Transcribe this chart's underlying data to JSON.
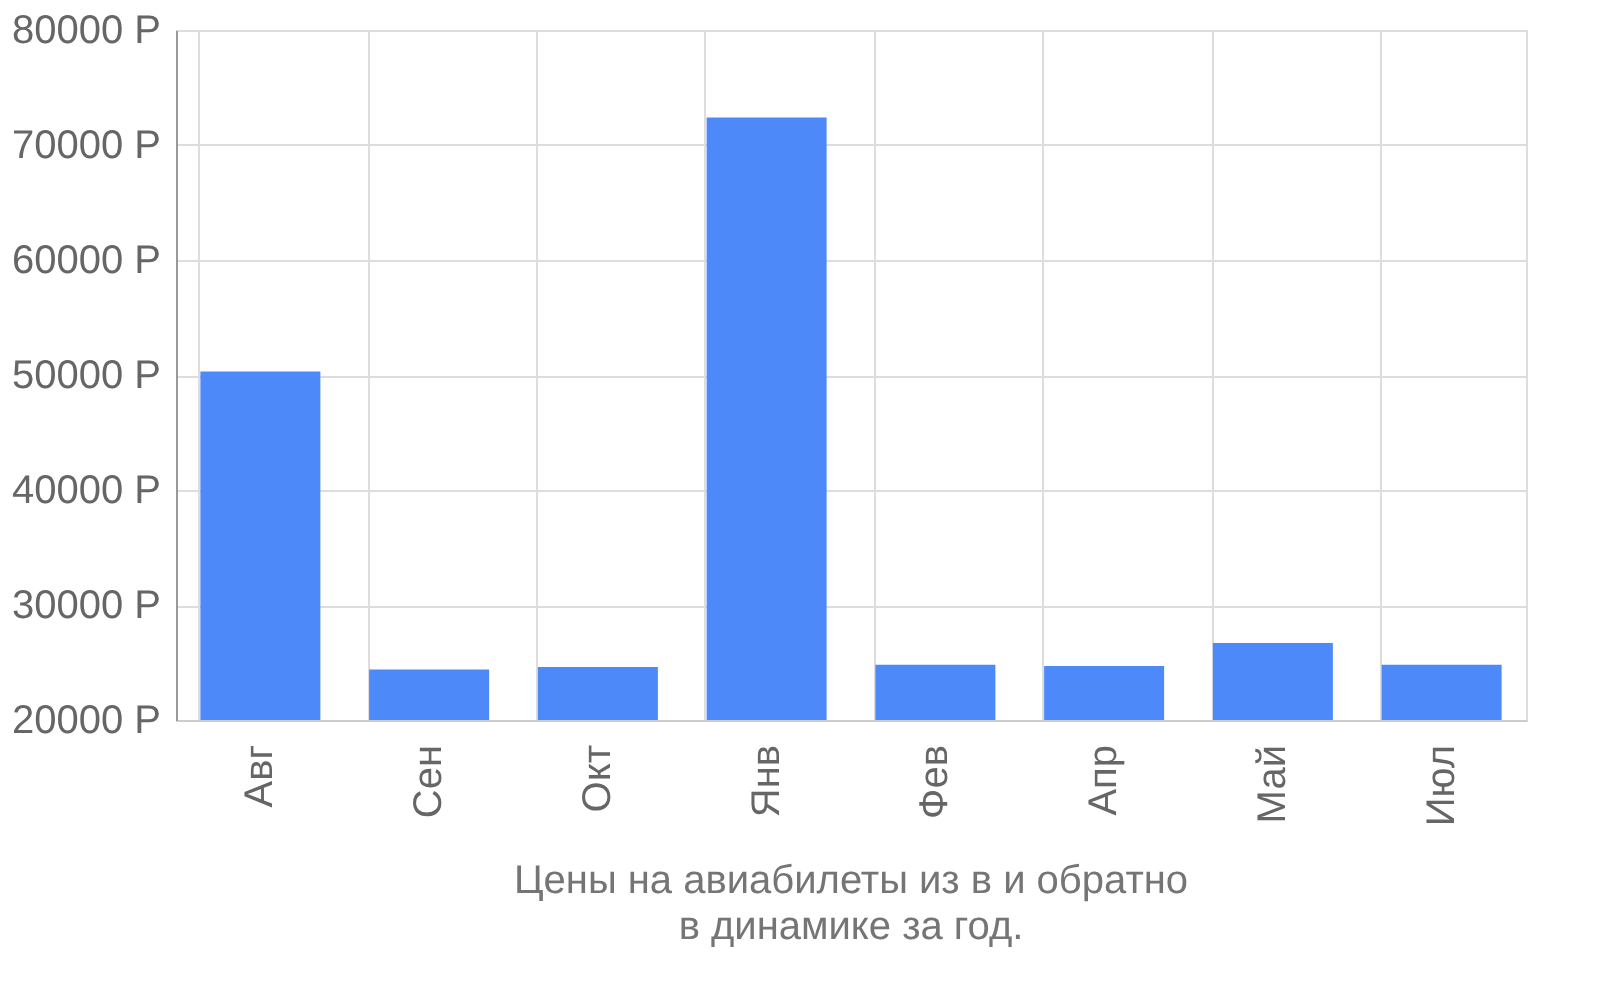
{
  "chart_data": {
    "type": "bar",
    "title": "Цены на авиабилеты из  в  и обратно",
    "subtitle": "в динамике за год.",
    "categories": [
      "Авг",
      "Сен",
      "Окт",
      "Янв",
      "Фев",
      "Апр",
      "Май",
      "Июл"
    ],
    "values": [
      50300,
      24400,
      24600,
      72400,
      24800,
      24700,
      26700,
      24800
    ],
    "color": "#4d89f9",
    "ylim": [
      20000,
      80000
    ],
    "yticks": [
      {
        "value": 20000,
        "label": "20000 Р"
      },
      {
        "value": 30000,
        "label": "30000 Р"
      },
      {
        "value": 40000,
        "label": "40000 Р"
      },
      {
        "value": 50000,
        "label": "50000 Р"
      },
      {
        "value": 60000,
        "label": "60000 Р"
      },
      {
        "value": 70000,
        "label": "70000 Р"
      },
      {
        "value": 80000,
        "label": "80000 Р"
      }
    ],
    "grid": true
  }
}
